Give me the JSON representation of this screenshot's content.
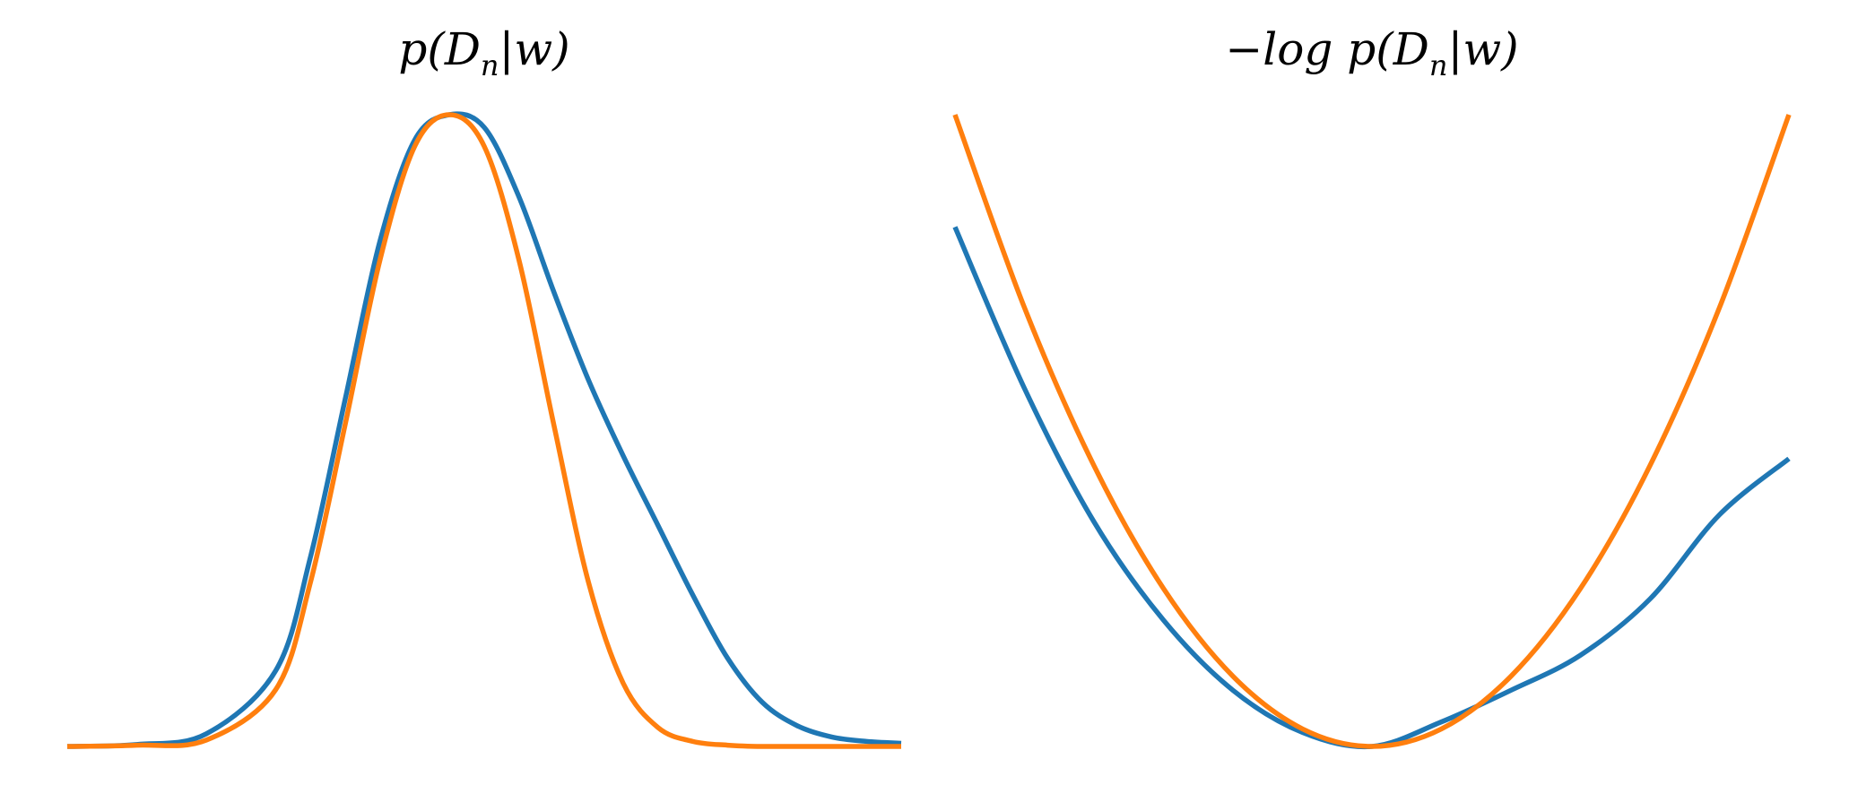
{
  "chart_data": [
    {
      "type": "line",
      "title": "p(D_n|w)",
      "title_parts": {
        "func": "p(D",
        "sub": "n",
        "rest": "|w)"
      },
      "axes_visible": false,
      "xlim": [
        -3,
        3
      ],
      "ylim": [
        0,
        1
      ],
      "series": [
        {
          "color": "#1f77b4",
          "x": [
            -3.0,
            -2.5,
            -2.0,
            -1.5,
            -1.25,
            -1.0,
            -0.75,
            -0.5,
            -0.25,
            0.0,
            0.25,
            0.5,
            0.75,
            1.0,
            1.25,
            1.5,
            1.75,
            2.0,
            2.25,
            2.5,
            2.75,
            3.0
          ],
          "values": [
            0.0,
            0.003,
            0.02,
            0.12,
            0.3,
            0.55,
            0.8,
            0.96,
            1.0,
            0.98,
            0.87,
            0.72,
            0.58,
            0.46,
            0.35,
            0.24,
            0.14,
            0.07,
            0.033,
            0.015,
            0.008,
            0.005
          ]
        },
        {
          "color": "#ff7f0e",
          "x": [
            -3.0,
            -2.5,
            -2.0,
            -1.5,
            -1.25,
            -1.0,
            -0.75,
            -0.5,
            -0.25,
            0.0,
            0.25,
            0.5,
            0.75,
            1.0,
            1.25,
            1.5,
            1.75,
            2.0,
            2.5,
            3.0
          ],
          "values": [
            0.0,
            0.002,
            0.01,
            0.09,
            0.26,
            0.51,
            0.77,
            0.95,
            1.0,
            0.95,
            0.77,
            0.51,
            0.26,
            0.1,
            0.03,
            0.008,
            0.002,
            0.0,
            0.0,
            0.0
          ]
        }
      ]
    },
    {
      "type": "line",
      "title": "−log p(D_n|w)",
      "title_parts": {
        "func": "−log p(D",
        "sub": "n",
        "rest": "|w)"
      },
      "axes_visible": false,
      "xlim": [
        -3,
        3
      ],
      "ylim": [
        0,
        9
      ],
      "series": [
        {
          "color": "#1f77b4",
          "x": [
            -3.0,
            -2.5,
            -2.0,
            -1.5,
            -1.0,
            -0.5,
            0.0,
            0.5,
            1.0,
            1.5,
            2.0,
            2.5,
            3.0
          ],
          "values": [
            7.4,
            5.1,
            3.2,
            1.8,
            0.8,
            0.2,
            0.0,
            0.35,
            0.8,
            1.3,
            2.1,
            3.3,
            4.1
          ]
        },
        {
          "color": "#ff7f0e",
          "x": [
            -3.0,
            -2.5,
            -2.0,
            -1.5,
            -1.0,
            -0.5,
            0.0,
            0.5,
            1.0,
            1.5,
            2.0,
            2.5,
            3.0
          ],
          "values": [
            9.0,
            6.25,
            4.0,
            2.25,
            1.0,
            0.25,
            0.0,
            0.25,
            1.0,
            2.25,
            4.0,
            6.25,
            9.0
          ]
        }
      ]
    }
  ]
}
